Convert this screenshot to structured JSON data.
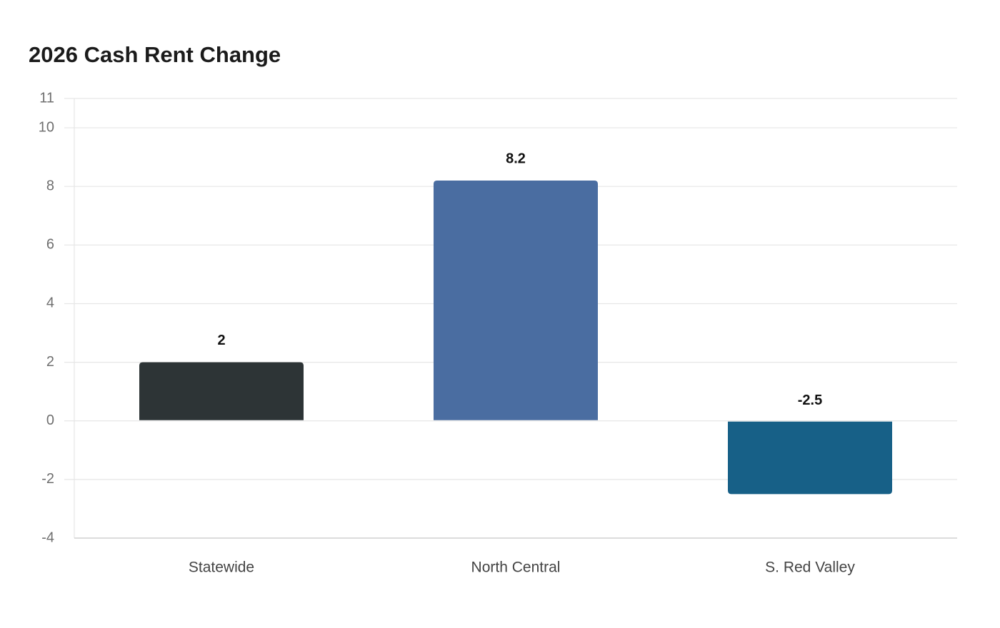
{
  "chart_data": {
    "type": "bar",
    "title": "2026 Cash Rent Change",
    "xlabel": "",
    "ylabel": "",
    "categories": [
      "Statewide",
      "North Central",
      "S. Red Valley"
    ],
    "values": [
      2,
      8.2,
      -2.5
    ],
    "value_labels": [
      "2",
      "8.2",
      "-2.5"
    ],
    "colors": [
      "#2d3436",
      "#4a6da1",
      "#176087"
    ],
    "ylim": [
      -4,
      11
    ],
    "yticks": [
      -4,
      -2,
      0,
      2,
      4,
      6,
      8,
      10,
      11
    ],
    "grid": true,
    "legend": "none"
  }
}
